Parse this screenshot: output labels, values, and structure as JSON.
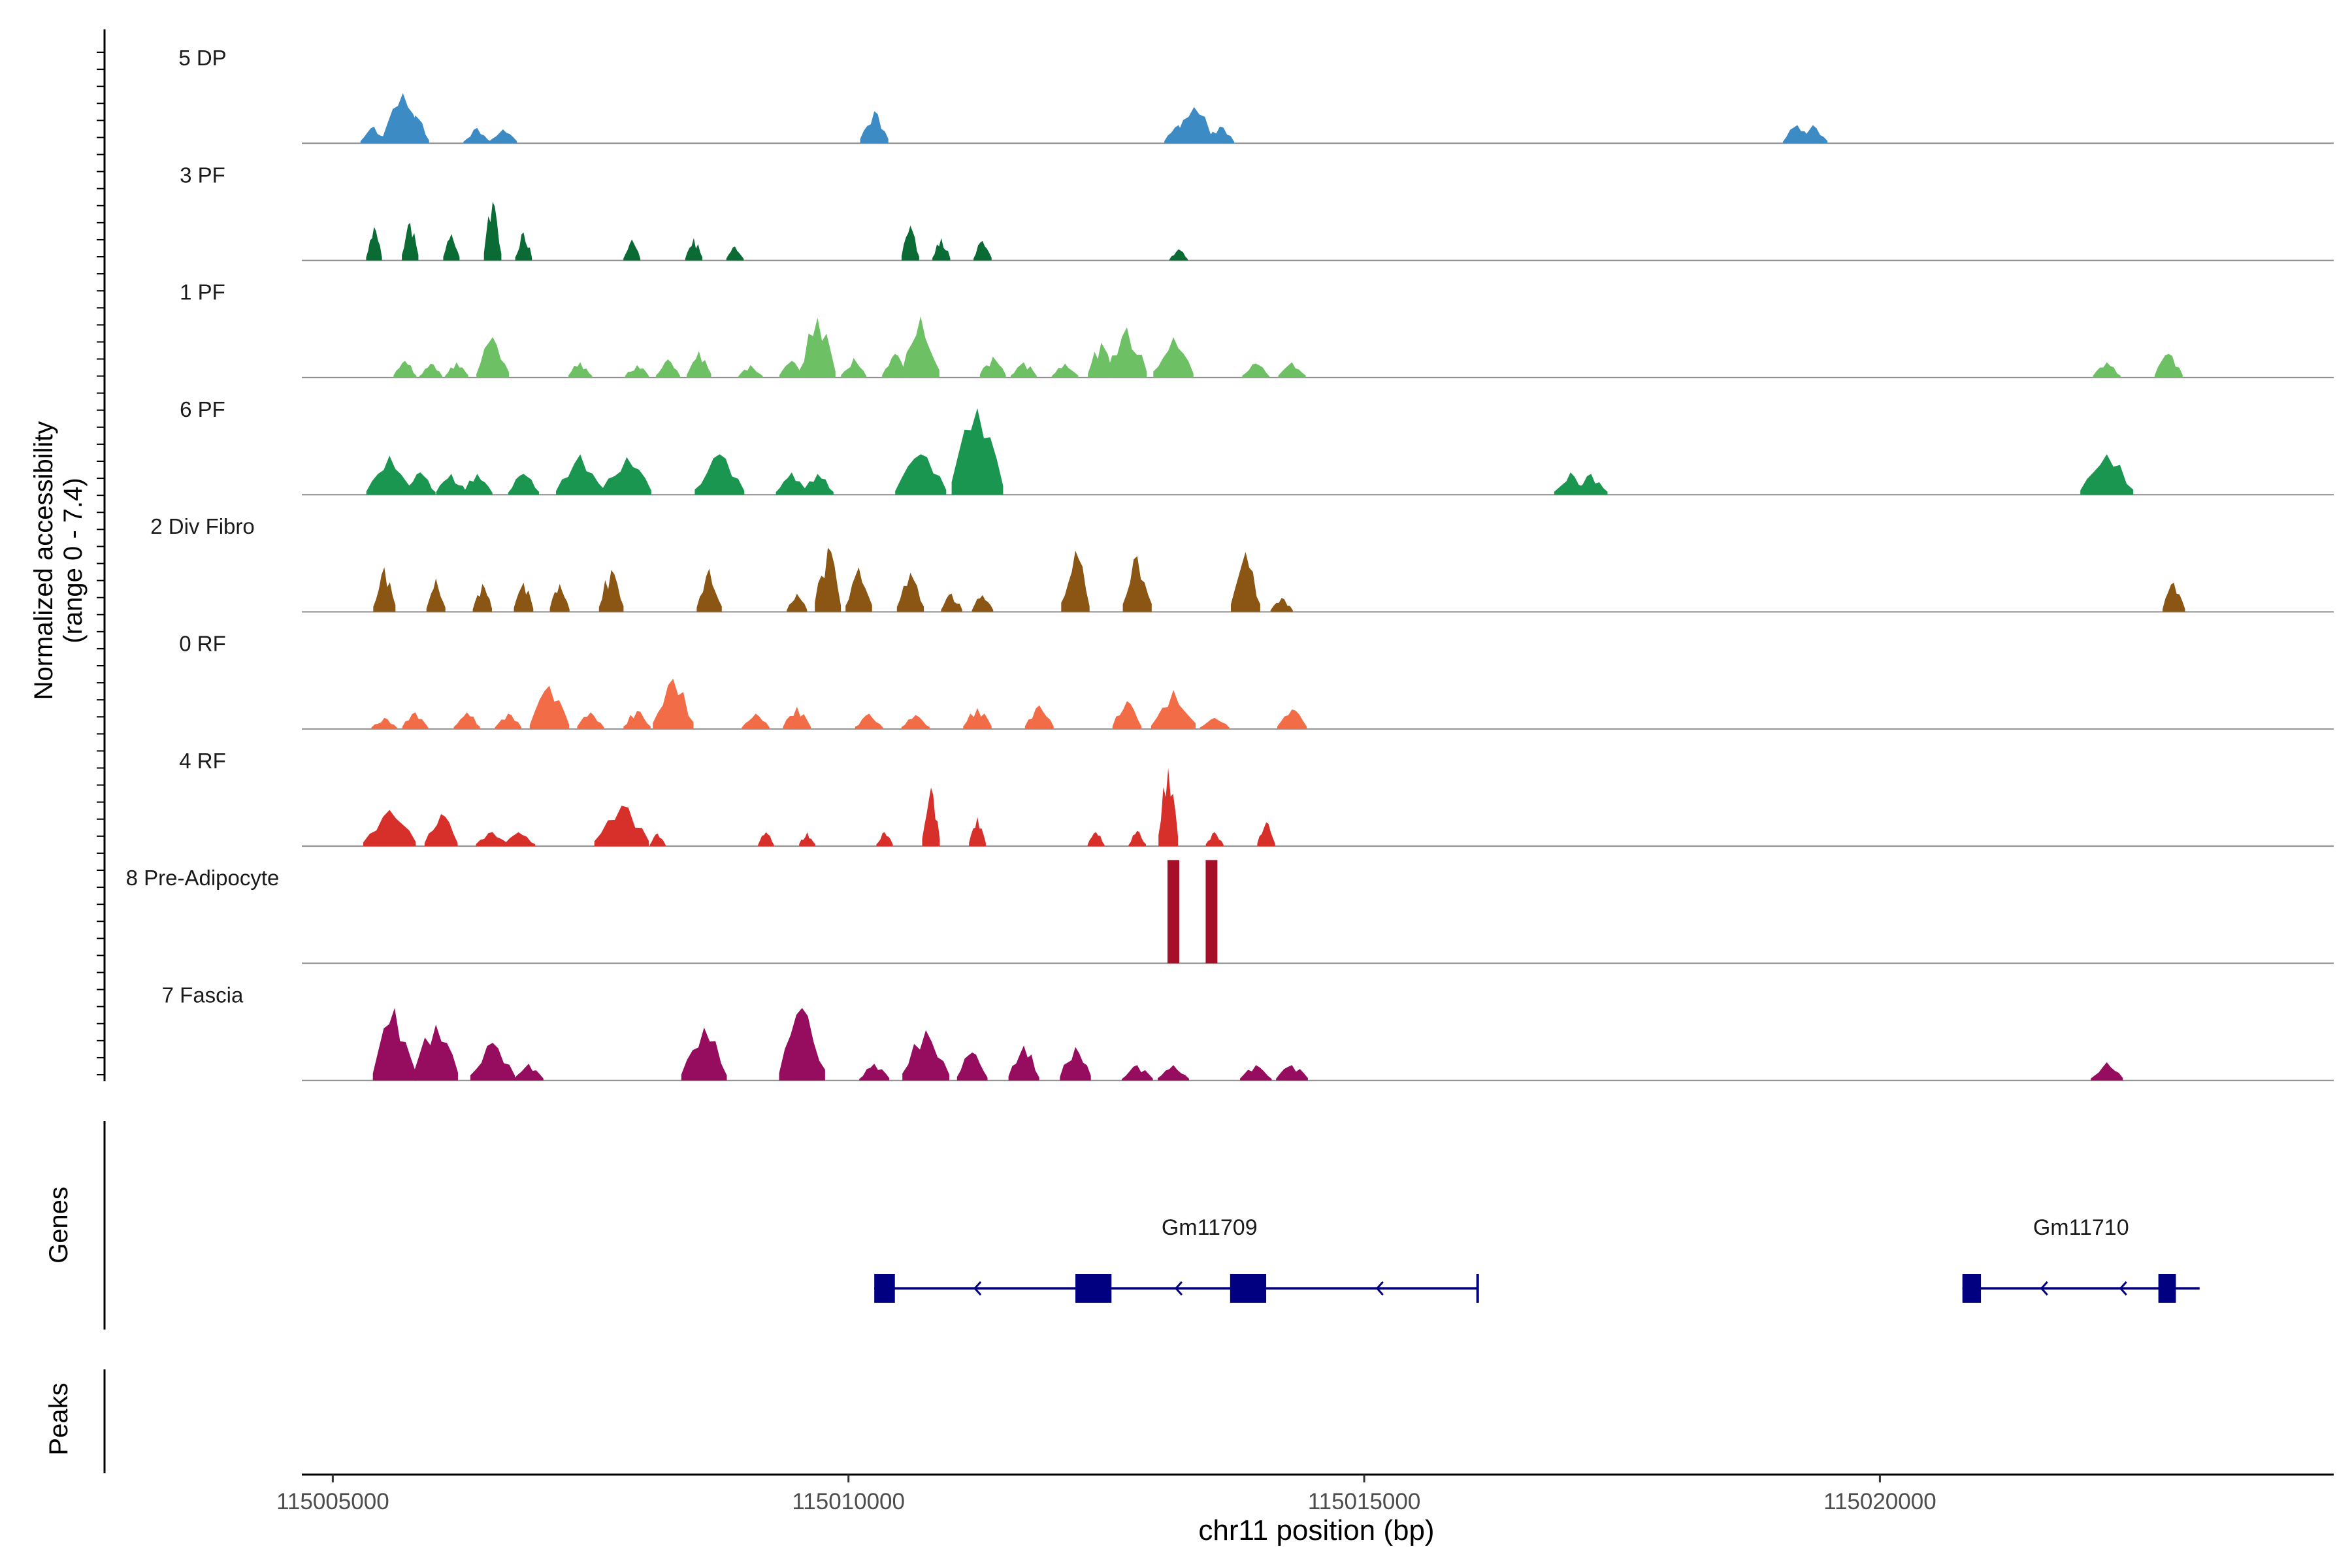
{
  "chart_data": {
    "type": "area",
    "title": "",
    "ylabel_line1": "Normalized accessibility",
    "ylabel_line2": "(range 0 - 7.4)",
    "xlabel": "chr11 position (bp)",
    "xlim": [
      115004700,
      115024400
    ],
    "ylim": [
      0,
      7.4
    ],
    "xticks": [
      115005000,
      115010000,
      115015000,
      115020000
    ],
    "xtick_labels": [
      "115005000",
      "115010000",
      "115015000",
      "115020000"
    ],
    "genes_label": "Genes",
    "peaks_label": "Peaks",
    "tracks": [
      {
        "name": "5 DP",
        "color": "#3C8BC4",
        "peaks": [
          [
            115005400,
            1.2
          ],
          [
            115005680,
            3.6
          ],
          [
            115005800,
            2.0
          ],
          [
            115006400,
            1.1
          ],
          [
            115006650,
            1.0
          ],
          [
            115010250,
            2.3
          ],
          [
            115013200,
            1.3
          ],
          [
            115013350,
            2.6
          ],
          [
            115013600,
            1.2
          ],
          [
            115019200,
            1.3
          ],
          [
            115019350,
            1.3
          ]
        ]
      },
      {
        "name": "3 PF",
        "color": "#0A6B34",
        "peaks": [
          [
            115005400,
            2.4
          ],
          [
            115005750,
            2.7
          ],
          [
            115006150,
            1.9
          ],
          [
            115006550,
            4.2
          ],
          [
            115006850,
            2.0
          ],
          [
            115007900,
            1.5
          ],
          [
            115008500,
            1.6
          ],
          [
            115008900,
            1.0
          ],
          [
            115010600,
            2.5
          ],
          [
            115010900,
            1.6
          ],
          [
            115011300,
            1.4
          ],
          [
            115013200,
            0.8
          ]
        ]
      },
      {
        "name": "1 PF",
        "color": "#6EC064",
        "peaks": [
          [
            115005700,
            1.2
          ],
          [
            115005950,
            1.0
          ],
          [
            115006200,
            1.1
          ],
          [
            115006550,
            2.9
          ],
          [
            115007400,
            1.1
          ],
          [
            115007950,
            0.9
          ],
          [
            115008250,
            1.3
          ],
          [
            115008550,
            1.9
          ],
          [
            115009050,
            0.9
          ],
          [
            115009450,
            1.2
          ],
          [
            115009700,
            4.3
          ],
          [
            115010050,
            1.4
          ],
          [
            115010450,
            1.7
          ],
          [
            115010700,
            4.4
          ],
          [
            115011400,
            1.5
          ],
          [
            115011700,
            1.1
          ],
          [
            115012100,
            1.0
          ],
          [
            115012450,
            2.5
          ],
          [
            115012700,
            3.6
          ],
          [
            115013150,
            2.9
          ],
          [
            115013950,
            1.0
          ],
          [
            115014300,
            1.1
          ],
          [
            115022200,
            1.1
          ],
          [
            115022800,
            1.7
          ]
        ]
      },
      {
        "name": "6 PF",
        "color": "#1B9651",
        "peaks": [
          [
            115005550,
            2.8
          ],
          [
            115005850,
            1.6
          ],
          [
            115006150,
            1.5
          ],
          [
            115006400,
            1.5
          ],
          [
            115006850,
            1.5
          ],
          [
            115007400,
            2.9
          ],
          [
            115007850,
            2.7
          ],
          [
            115008750,
            2.9
          ],
          [
            115009450,
            1.6
          ],
          [
            115009700,
            1.5
          ],
          [
            115010700,
            2.9
          ],
          [
            115011250,
            6.2
          ],
          [
            115017000,
            1.6
          ],
          [
            115017200,
            1.5
          ],
          [
            115022200,
            2.9
          ]
        ]
      },
      {
        "name": "2 Div Fibro",
        "color": "#8B5514",
        "peaks": [
          [
            115005500,
            3.2
          ],
          [
            115006000,
            2.4
          ],
          [
            115006450,
            2.0
          ],
          [
            115006850,
            2.1
          ],
          [
            115007200,
            2.0
          ],
          [
            115007700,
            3.0
          ],
          [
            115008650,
            3.1
          ],
          [
            115009500,
            1.3
          ],
          [
            115009800,
            4.6
          ],
          [
            115010100,
            3.2
          ],
          [
            115010600,
            2.8
          ],
          [
            115011000,
            1.3
          ],
          [
            115011300,
            1.2
          ],
          [
            115012200,
            4.4
          ],
          [
            115012800,
            4.0
          ],
          [
            115013850,
            4.3
          ],
          [
            115014200,
            1.0
          ],
          [
            115022850,
            2.1
          ]
        ]
      },
      {
        "name": "0 RF",
        "color": "#F26C47",
        "peaks": [
          [
            115005500,
            0.8
          ],
          [
            115005800,
            1.2
          ],
          [
            115006300,
            1.2
          ],
          [
            115006700,
            1.1
          ],
          [
            115007100,
            3.1
          ],
          [
            115007500,
            1.2
          ],
          [
            115007950,
            1.3
          ],
          [
            115008300,
            3.6
          ],
          [
            115009100,
            1.1
          ],
          [
            115009500,
            1.6
          ],
          [
            115010200,
            1.1
          ],
          [
            115010650,
            1.0
          ],
          [
            115011250,
            1.5
          ],
          [
            115011850,
            1.7
          ],
          [
            115012700,
            2.0
          ],
          [
            115013150,
            2.8
          ],
          [
            115013550,
            0.8
          ],
          [
            115014300,
            1.4
          ]
        ]
      },
      {
        "name": "4 RF",
        "color": "#D7302A",
        "peaks": [
          [
            115005550,
            2.6
          ],
          [
            115006050,
            2.3
          ],
          [
            115006550,
            1.0
          ],
          [
            115006800,
            1.0
          ],
          [
            115007800,
            2.9
          ],
          [
            115008150,
            0.9
          ],
          [
            115009200,
            1.0
          ],
          [
            115009600,
            1.0
          ],
          [
            115010350,
            1.0
          ],
          [
            115010800,
            4.2
          ],
          [
            115011250,
            2.1
          ],
          [
            115012400,
            1.0
          ],
          [
            115012800,
            1.1
          ],
          [
            115013100,
            5.6
          ],
          [
            115013550,
            1.0
          ],
          [
            115014050,
            1.7
          ]
        ]
      },
      {
        "name": "8 Pre-Adipocyte",
        "color": "#A50F28",
        "peaks": [
          [
            115013150,
            7.4
          ],
          [
            115013520,
            7.4
          ]
        ]
      },
      {
        "name": "7 Fascia",
        "color": "#960C5E",
        "peaks": [
          [
            115005600,
            5.2
          ],
          [
            115006000,
            4.0
          ],
          [
            115006550,
            2.7
          ],
          [
            115006900,
            1.2
          ],
          [
            115008600,
            3.8
          ],
          [
            115009550,
            5.2
          ],
          [
            115010250,
            1.2
          ],
          [
            115010750,
            3.6
          ],
          [
            115011200,
            2.0
          ],
          [
            115011700,
            2.5
          ],
          [
            115012200,
            2.4
          ],
          [
            115012800,
            1.1
          ],
          [
            115013150,
            1.1
          ],
          [
            115013950,
            1.1
          ],
          [
            115014300,
            1.1
          ],
          [
            115022200,
            1.3
          ]
        ]
      }
    ],
    "genes": [
      {
        "name": "Gm11709",
        "start": 115010250,
        "end": 115016100,
        "strand": "-",
        "exons": [
          [
            115010250,
            115010450
          ],
          [
            115012200,
            115012550
          ],
          [
            115013700,
            115014050
          ]
        ]
      },
      {
        "name": "Gm11710",
        "start": 115020800,
        "end": 115023100,
        "strand": "-",
        "exons": [
          [
            115020800,
            115020980
          ],
          [
            115022700,
            115022870
          ]
        ]
      }
    ]
  }
}
